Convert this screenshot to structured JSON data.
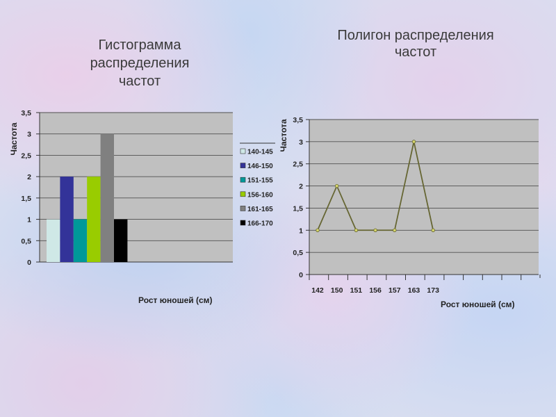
{
  "chart_data": [
    {
      "type": "bar",
      "title": "Гистограмма\nраспределения\nчастот",
      "ylabel": "Частота",
      "xlabel": "Рост юношей (см)",
      "ylim": [
        0,
        3.5
      ],
      "yticks": [
        "0",
        "0,5",
        "1",
        "1,5",
        "2",
        "2,5",
        "3",
        "3,5"
      ],
      "grid": true,
      "legend": "right",
      "plot_color": "#c0c0c0",
      "series": [
        {
          "name": "140-145",
          "value": 1,
          "color": "#cfe8e6"
        },
        {
          "name": "146-150",
          "value": 2,
          "color": "#333399"
        },
        {
          "name": "151-155",
          "value": 1,
          "color": "#009999"
        },
        {
          "name": "156-160",
          "value": 2,
          "color": "#99cc00"
        },
        {
          "name": "161-165",
          "value": 3,
          "color": "#808080"
        },
        {
          "name": "166-170",
          "value": 1,
          "color": "#000000"
        }
      ]
    },
    {
      "type": "line",
      "title": "Полигон распределения\nчастот",
      "ylabel": "Частота",
      "xlabel": "Рост юношей (см)",
      "ylim": [
        0,
        3.5
      ],
      "yticks": [
        "0",
        "0,5",
        "1",
        "1,5",
        "2",
        "2,5",
        "3",
        "3,5"
      ],
      "grid": true,
      "plot_color": "#c0c0c0",
      "line_color": "#666633",
      "marker_color": "#d6d66b",
      "categories": [
        "142",
        "150",
        "151",
        "156",
        "157",
        "163",
        "173"
      ],
      "values": [
        1,
        2,
        1,
        1,
        1,
        3,
        1
      ]
    }
  ]
}
